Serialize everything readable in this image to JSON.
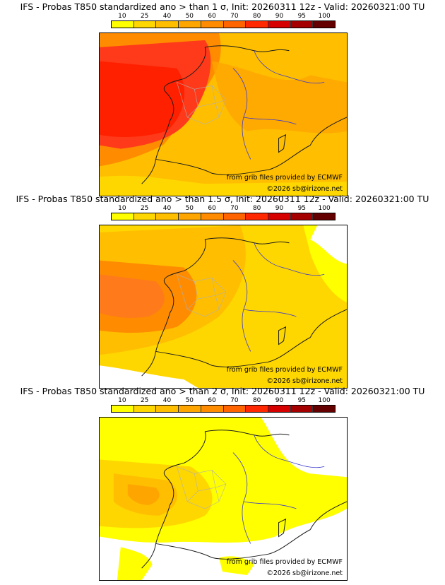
{
  "colorbar": {
    "labels": [
      "10",
      "25",
      "40",
      "50",
      "60",
      "70",
      "80",
      "90",
      "95",
      "100"
    ],
    "colors": [
      "#ffff00",
      "#ffd700",
      "#ffbf00",
      "#ffa500",
      "#ff8c00",
      "#ff6400",
      "#ff2800",
      "#d70000",
      "#a50000",
      "#640000"
    ]
  },
  "panels": [
    {
      "title": "IFS - Probas T850  standardized ano > than 1 σ, Init: 20260311 12z - Valid: 20260321:00 TU",
      "credit_source": "from grib files provided by ECMWF",
      "credit_site": "©2026 sb@irizone.net",
      "dominant_class": "60-70 %",
      "field_colors": {
        "base": "#ffbf00",
        "mid": "#ff8c00",
        "high": "#ff3a1a",
        "peak": "#ff2000"
      }
    },
    {
      "title": "IFS - Probas T850  standardized ano > than 1.5 σ, Init: 20260311 12z - Valid: 20260321:00 TU",
      "credit_source": "from grib files provided by ECMWF",
      "credit_site": "©2026 sb@irizone.net",
      "dominant_class": "40-60 %",
      "field_colors": {
        "base": "#ffd700",
        "mid": "#ffbf00",
        "high": "#ff8c00",
        "peak": "#ff7a1a"
      }
    },
    {
      "title": "IFS - Probas T850  standardized ano > than 2 σ, Init: 20260311 12z - Valid: 20260321:00 TU",
      "credit_source": "from grib files provided by ECMWF",
      "credit_site": "©2026 sb@irizone.net",
      "dominant_class": "10-40 %",
      "field_colors": {
        "base": "#ffff00",
        "mid": "#ffd700",
        "high": "#ffbf00",
        "peak": "#ffa500"
      }
    }
  ]
}
